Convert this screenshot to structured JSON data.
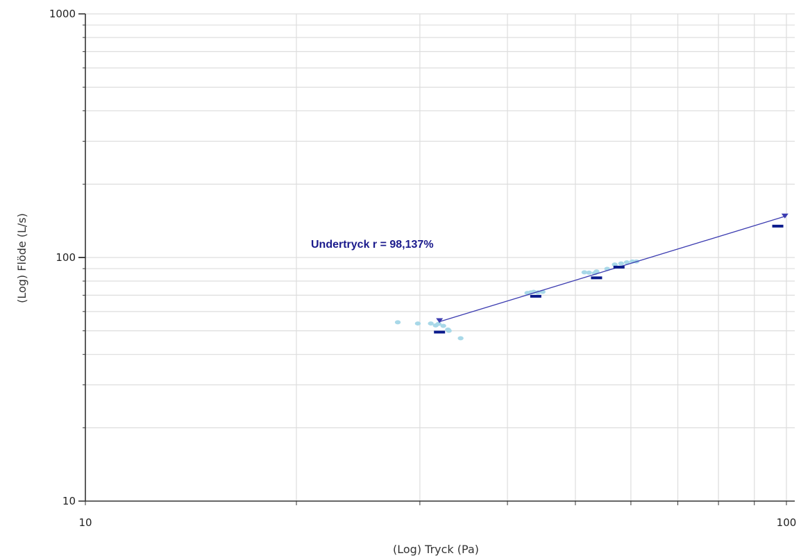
{
  "chart_data": {
    "type": "scatter",
    "xlabel": "(Log) Tryck (Pa)",
    "ylabel": "(Log) Flöde (L/s)",
    "xscale": "log",
    "yscale": "log",
    "xlim": [
      10,
      100
    ],
    "ylim": [
      10,
      1000
    ],
    "x_tick_labels": [
      "10",
      "100"
    ],
    "y_tick_labels": [
      "10",
      "100",
      "1000"
    ],
    "grid": true,
    "annotation": "Undertryck r = 98,137%",
    "fit_line": {
      "from": [
        32.0,
        54.5
      ],
      "to": [
        99.5,
        147.5
      ]
    },
    "series": [
      {
        "role": "raw",
        "color": "#a8d8e8",
        "points": [
          [
            27.9,
            54.2
          ],
          [
            29.8,
            53.6
          ],
          [
            31.1,
            53.6
          ],
          [
            31.6,
            52.6
          ],
          [
            31.9,
            53.4
          ],
          [
            32.4,
            52.4
          ],
          [
            32.9,
            50.6
          ],
          [
            33.0,
            50.0
          ],
          [
            34.3,
            46.6
          ],
          [
            42.7,
            71.5
          ],
          [
            43.2,
            71.9
          ],
          [
            43.6,
            72.3
          ],
          [
            44.2,
            71.9
          ],
          [
            44.9,
            72.3
          ],
          [
            51.5,
            86.9
          ],
          [
            52.3,
            86.6
          ],
          [
            53.3,
            86.3
          ],
          [
            53.6,
            87.6
          ],
          [
            55.5,
            89.8
          ],
          [
            56.9,
            93.6
          ],
          [
            58.1,
            94.5
          ],
          [
            59.2,
            95.5
          ],
          [
            60.3,
            96.3
          ],
          [
            61.1,
            96.3
          ]
        ]
      },
      {
        "role": "mean",
        "color": "#0a1a8c",
        "points": [
          [
            32.0,
            49.4
          ],
          [
            43.9,
            69.3
          ],
          [
            53.6,
            82.5
          ],
          [
            57.7,
            91.3
          ],
          [
            97.2,
            134.5
          ]
        ]
      }
    ],
    "colors": {
      "fit_line": "#3b3bb0",
      "axis": "#333333",
      "grid": "#dddddd",
      "annotation": "#1a1a8c"
    }
  }
}
